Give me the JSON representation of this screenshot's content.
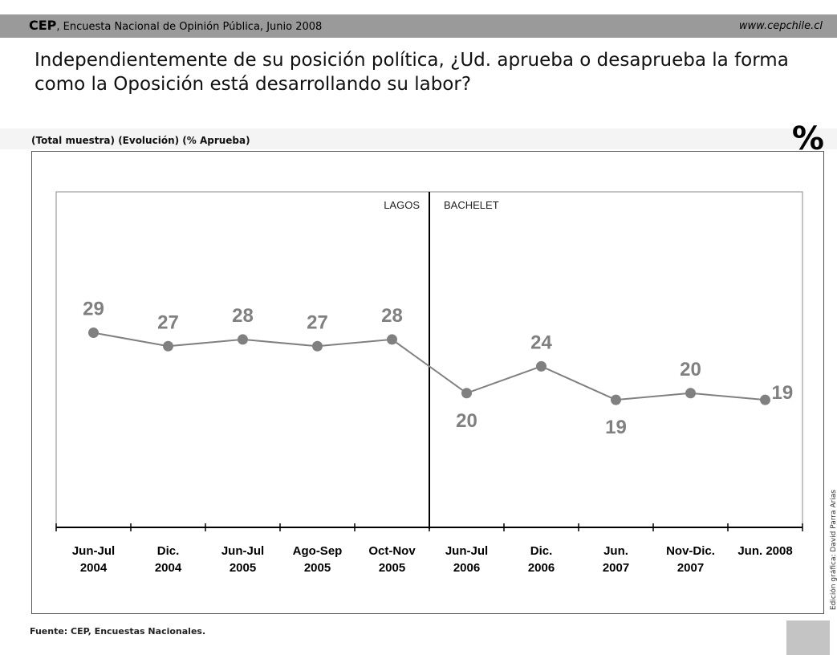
{
  "header": {
    "brand": "CEP",
    "survey": ", Encuesta Nacional de Opinión Pública, Junio 2008",
    "url": "www.cepchile.cl"
  },
  "question": "Independientemente de su posición política, ¿Ud. aprueba o desaprueba la forma como la Oposición está desarrollando su labor?",
  "subtitle": "(Total muestra) (Evolución) (% Aprueba)",
  "percent_symbol": "%",
  "source": "Fuente: CEP, Encuestas Nacionales.",
  "credit": "Edición gráfica: David Parra Arias",
  "colors": {
    "header_bar": "#9a9a9a",
    "series": "#808080",
    "axis": "#000000"
  },
  "chart_data": {
    "type": "line",
    "title": "",
    "categories": [
      [
        "Jun-Jul",
        "2004"
      ],
      [
        "Dic.",
        "2004"
      ],
      [
        "Jun-Jul",
        "2005"
      ],
      [
        "Ago-Sep",
        "2005"
      ],
      [
        "Oct-Nov",
        "2005"
      ],
      [
        "Jun-Jul",
        "2006"
      ],
      [
        "Dic.",
        "2006"
      ],
      [
        "Jun.",
        "2007"
      ],
      [
        "Nov-Dic.",
        "2007"
      ],
      [
        "Jun. 2008",
        ""
      ]
    ],
    "series": [
      {
        "values": [
          29,
          27,
          28,
          27,
          28,
          20,
          24,
          19,
          20,
          19
        ]
      }
    ],
    "data_label_position": [
      "above",
      "above",
      "above",
      "above",
      "above",
      "below",
      "above",
      "below",
      "above",
      "right"
    ],
    "ylim": [
      0,
      50
    ],
    "divider": {
      "after_index": 4,
      "left_label": "LAGOS",
      "right_label": "BACHELET"
    },
    "grid": false,
    "legend": "none"
  }
}
